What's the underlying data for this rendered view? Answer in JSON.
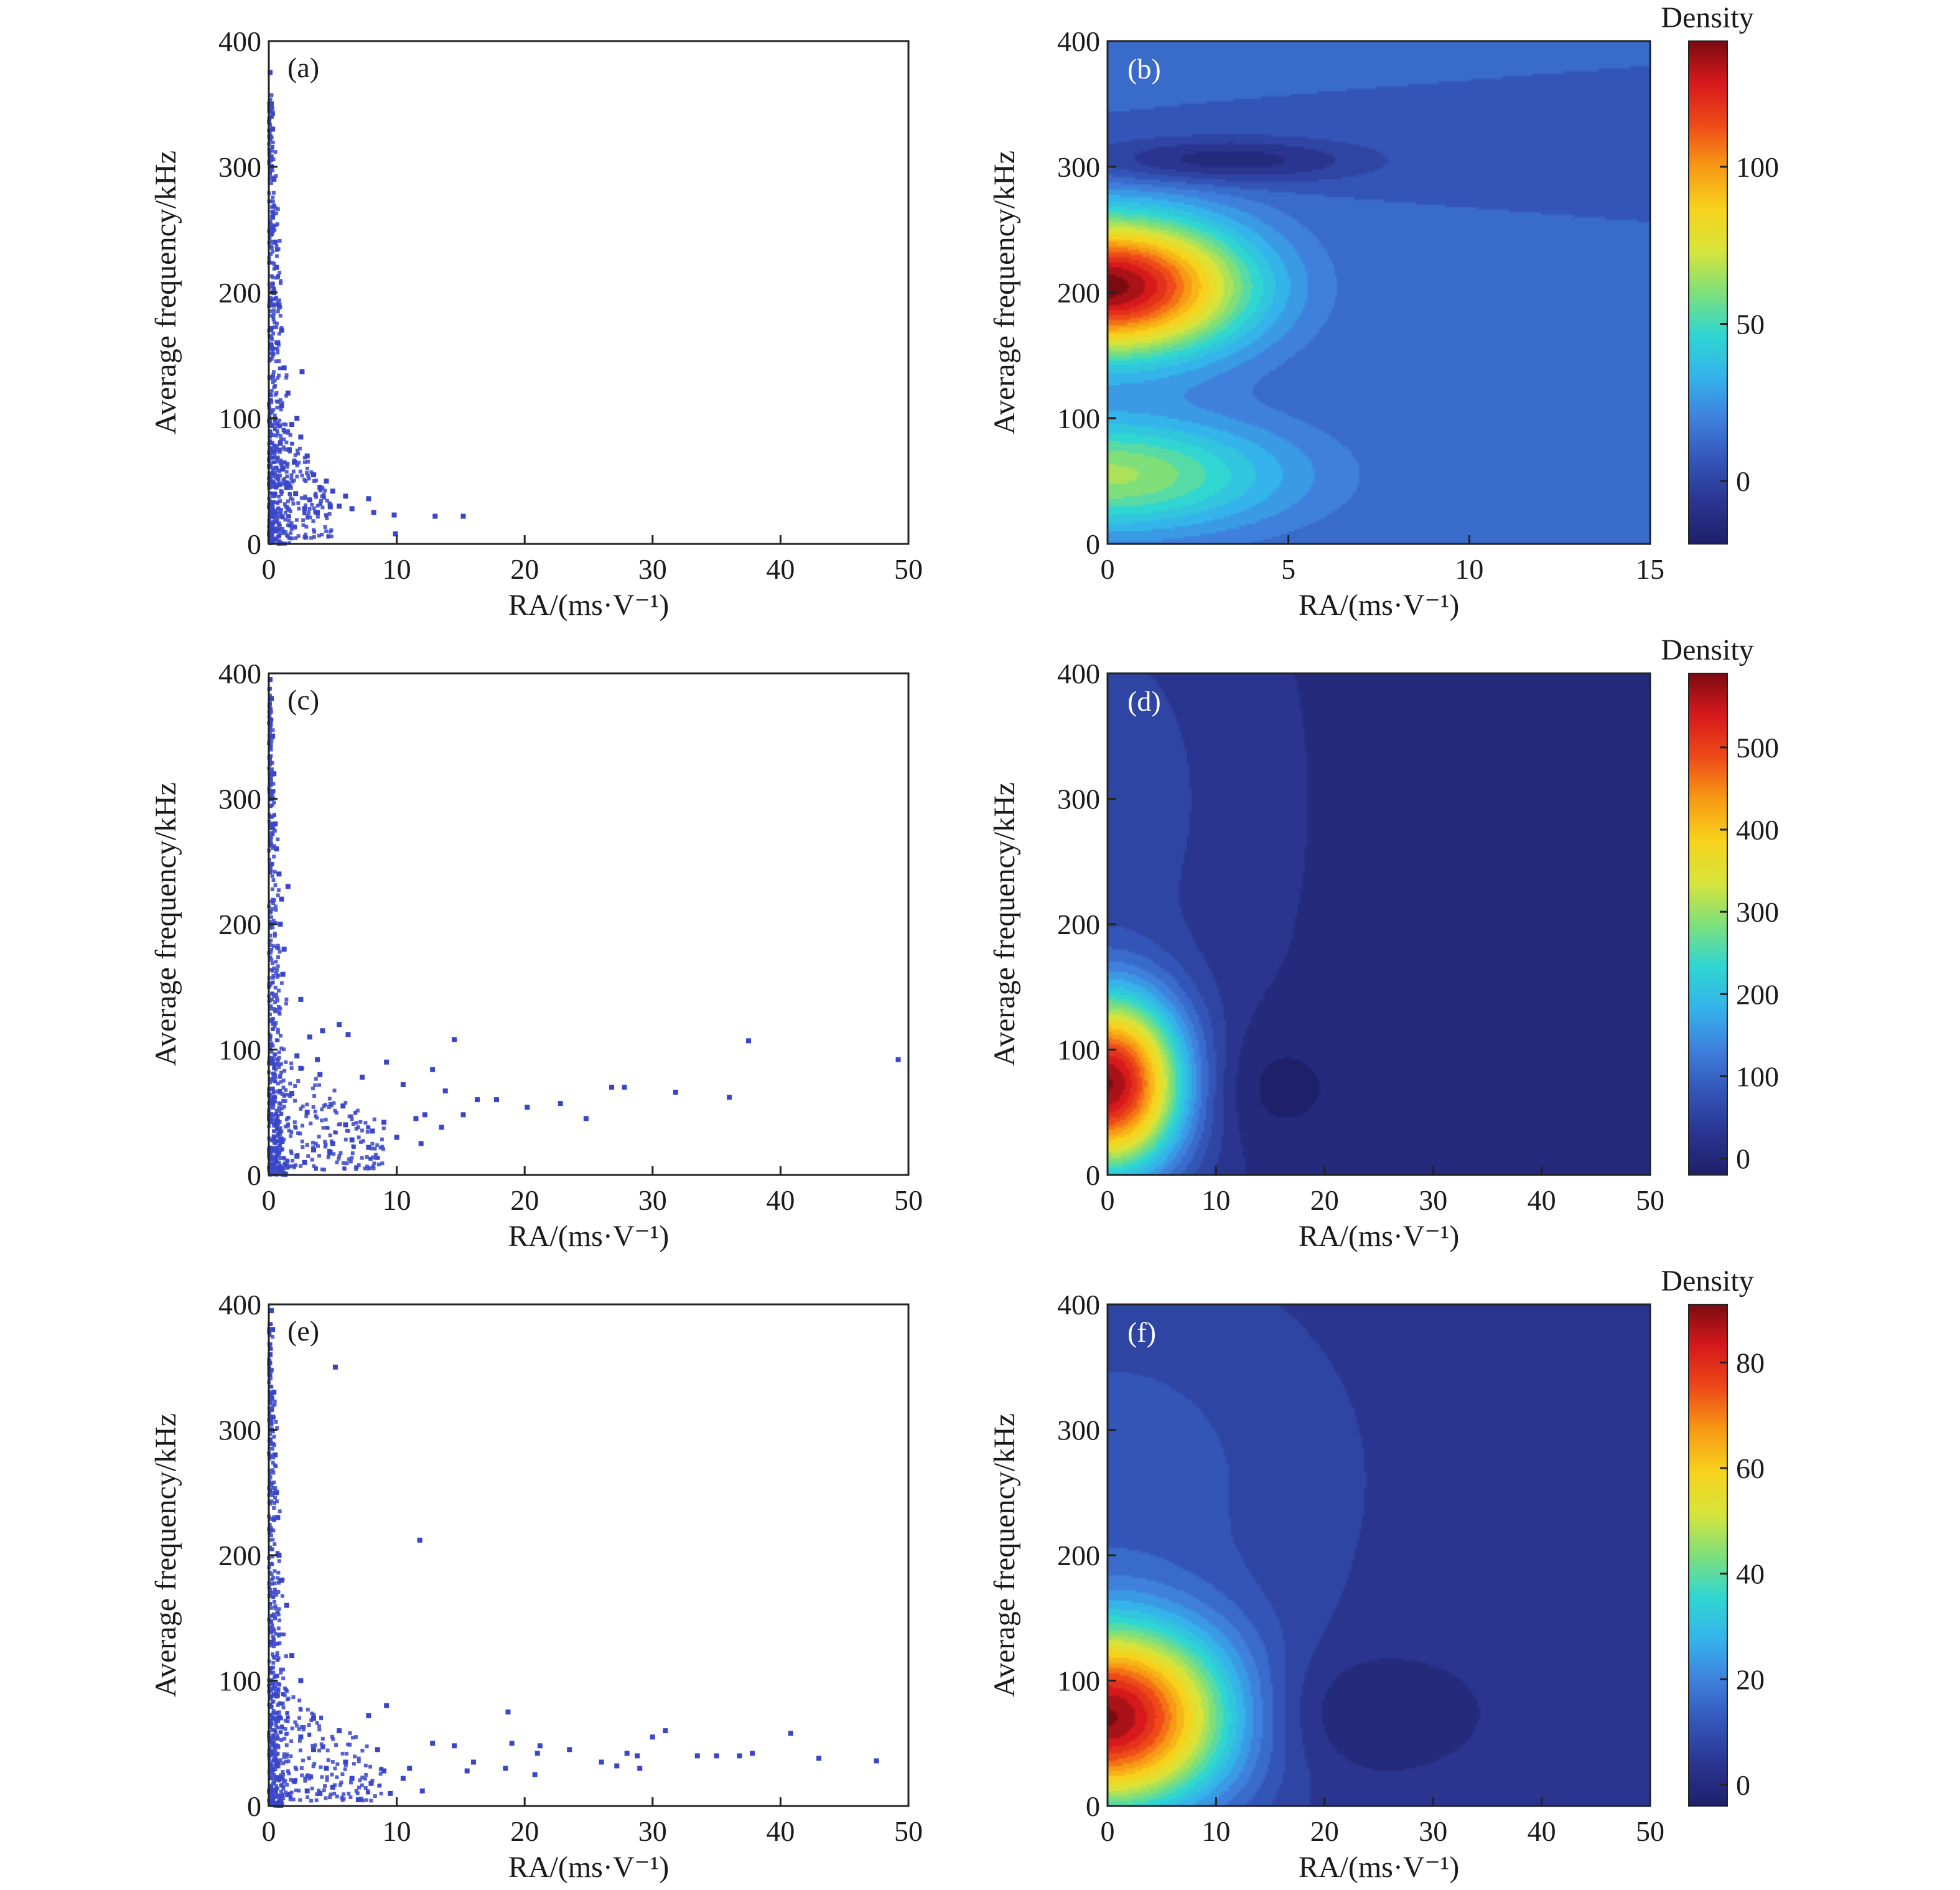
{
  "colors": {
    "scatter_point": "#3a46c8",
    "frame": "#222222",
    "colormap": [
      "#1e2069",
      "#2a3590",
      "#3355b8",
      "#3f80dd",
      "#34b4ea",
      "#2fd6d2",
      "#7fe07a",
      "#d8e43a",
      "#f7d21c",
      "#f79a14",
      "#ee4a18",
      "#d7191c",
      "#7a0b10"
    ]
  },
  "chart_data": [
    {
      "id": "a",
      "type": "scatter",
      "panel_label": "(a)",
      "xlabel": "RA/(ms·V⁻¹)",
      "ylabel": "Average frequency/kHz",
      "xlim": [
        0,
        50
      ],
      "ylim": [
        0,
        400
      ],
      "xticks": [
        "0",
        "10",
        "20",
        "30",
        "40",
        "50"
      ],
      "yticks": [
        "0",
        "100",
        "200",
        "300",
        "400"
      ],
      "points": [
        [
          0.1,
          375
        ],
        [
          0.2,
          350
        ],
        [
          0.3,
          330
        ],
        [
          0.2,
          300
        ],
        [
          0.4,
          290
        ],
        [
          0.3,
          260
        ],
        [
          0.5,
          240
        ],
        [
          0.6,
          220
        ],
        [
          0.4,
          200
        ],
        [
          0.8,
          190
        ],
        [
          1.0,
          170
        ],
        [
          0.7,
          160
        ],
        [
          1.2,
          140
        ],
        [
          2.6,
          137
        ],
        [
          1.5,
          120
        ],
        [
          1.0,
          110
        ],
        [
          2.2,
          100
        ],
        [
          1.8,
          95
        ],
        [
          2.5,
          85
        ],
        [
          3.0,
          70
        ],
        [
          2.0,
          65
        ],
        [
          3.5,
          55
        ],
        [
          4.5,
          50
        ],
        [
          4.0,
          45
        ],
        [
          5.0,
          42
        ],
        [
          6.0,
          38
        ],
        [
          7.8,
          36
        ],
        [
          5.5,
          30
        ],
        [
          8.2,
          25
        ],
        [
          9.8,
          23
        ],
        [
          13.0,
          22
        ],
        [
          15.2,
          22
        ],
        [
          3.2,
          35
        ],
        [
          2.8,
          28
        ],
        [
          1.4,
          45
        ],
        [
          1.1,
          60
        ],
        [
          0.9,
          80
        ],
        [
          1.6,
          75
        ],
        [
          2.1,
          40
        ],
        [
          3.8,
          25
        ],
        [
          4.8,
          30
        ],
        [
          6.5,
          28
        ],
        [
          9.9,
          8
        ]
      ],
      "dense_cluster": {
        "note": "dense points near RA 0-3, frequency 0-400"
      }
    },
    {
      "id": "b",
      "type": "heatmap",
      "panel_label": "(b)",
      "xlabel": "RA/(ms·V⁻¹)",
      "ylabel": "Average frequency/kHz",
      "xlim": [
        0,
        15
      ],
      "ylim": [
        0,
        400
      ],
      "xticks": [
        "0",
        "5",
        "10",
        "15"
      ],
      "yticks": [
        "0",
        "100",
        "200",
        "300",
        "400"
      ],
      "colorbar": {
        "title": "Density",
        "min": -20,
        "max": 140,
        "ticks": [
          "0",
          "50",
          "100"
        ],
        "tick_values": [
          0,
          50,
          100
        ]
      },
      "background": 10,
      "blobs": [
        {
          "x": 0,
          "y": 205,
          "peak": 130,
          "sx": 2.6,
          "sy": 38
        },
        {
          "x": 0,
          "y": 55,
          "peak": 55,
          "sx": 3.4,
          "sy": 32
        },
        {
          "x": 3.2,
          "y": 305,
          "peak": -25,
          "sx": 2.8,
          "sy": 13
        }
      ]
    },
    {
      "id": "c",
      "type": "scatter",
      "panel_label": "(c)",
      "xlabel": "RA/(ms·V⁻¹)",
      "ylabel": "Average frequency/kHz",
      "xlim": [
        0,
        50
      ],
      "ylim": [
        0,
        400
      ],
      "xticks": [
        "0",
        "10",
        "20",
        "30",
        "40",
        "50"
      ],
      "yticks": [
        "0",
        "100",
        "200",
        "300",
        "400"
      ],
      "points": [
        [
          0.1,
          395
        ],
        [
          0.2,
          380
        ],
        [
          0.3,
          350
        ],
        [
          0.4,
          320
        ],
        [
          0.2,
          300
        ],
        [
          0.5,
          280
        ],
        [
          0.6,
          260
        ],
        [
          0.8,
          240
        ],
        [
          1.5,
          230
        ],
        [
          1.0,
          220
        ],
        [
          0.9,
          200
        ],
        [
          1.2,
          180
        ],
        [
          1.1,
          160
        ],
        [
          2.5,
          140
        ],
        [
          3.2,
          110
        ],
        [
          5.5,
          120
        ],
        [
          4.2,
          115
        ],
        [
          6.2,
          112
        ],
        [
          14.5,
          108
        ],
        [
          37.5,
          107
        ],
        [
          49.2,
          92
        ],
        [
          9.2,
          90
        ],
        [
          12.8,
          84
        ],
        [
          2.5,
          85
        ],
        [
          4.0,
          80
        ],
        [
          7.3,
          78
        ],
        [
          10.5,
          72
        ],
        [
          13.8,
          67
        ],
        [
          26.8,
          70
        ],
        [
          27.8,
          70
        ],
        [
          31.8,
          66
        ],
        [
          36.0,
          62
        ],
        [
          16.3,
          60
        ],
        [
          17.8,
          60
        ],
        [
          20.2,
          54
        ],
        [
          22.8,
          57
        ],
        [
          24.8,
          45
        ],
        [
          15.2,
          48
        ],
        [
          11.5,
          45
        ],
        [
          12.2,
          48
        ],
        [
          13.5,
          38
        ],
        [
          9.0,
          42
        ],
        [
          8.1,
          35
        ],
        [
          10.0,
          30
        ],
        [
          11.9,
          25
        ],
        [
          6.5,
          28
        ],
        [
          7.8,
          22
        ],
        [
          5.0,
          25
        ],
        [
          3.5,
          20
        ],
        [
          2.2,
          15
        ],
        [
          2.8,
          10
        ],
        [
          4.8,
          18
        ],
        [
          6.0,
          40
        ],
        [
          5.8,
          55
        ],
        [
          3.0,
          50
        ],
        [
          1.8,
          65
        ],
        [
          2.2,
          95
        ],
        [
          3.8,
          92
        ]
      ]
    },
    {
      "id": "d",
      "type": "heatmap",
      "panel_label": "(d)",
      "xlabel": "RA/(ms·V⁻¹)",
      "ylabel": "Average frequency/kHz",
      "xlim": [
        0,
        50
      ],
      "ylim": [
        0,
        400
      ],
      "xticks": [
        "0",
        "10",
        "20",
        "30",
        "40",
        "50"
      ],
      "yticks": [
        "0",
        "100",
        "200",
        "300",
        "400"
      ],
      "colorbar": {
        "title": "Density",
        "min": -20,
        "max": 590,
        "ticks": [
          "0",
          "100",
          "200",
          "300",
          "400",
          "500"
        ],
        "tick_values": [
          0,
          100,
          200,
          300,
          400,
          500
        ]
      },
      "background": 15,
      "blobs": [
        {
          "x": 0,
          "y": 72,
          "peak": 560,
          "sx": 5.0,
          "sy": 50
        },
        {
          "x": 0,
          "y": 300,
          "peak": 45,
          "sx": 8.0,
          "sy": 120
        },
        {
          "x": 14,
          "y": 70,
          "peak": -35,
          "sx": 6.0,
          "sy": 35
        }
      ]
    },
    {
      "id": "e",
      "type": "scatter",
      "panel_label": "(e)",
      "xlabel": "RA/(ms·V⁻¹)",
      "ylabel": "Average frequency/kHz",
      "xlim": [
        0,
        50
      ],
      "ylim": [
        0,
        400
      ],
      "xticks": [
        "0",
        "10",
        "20",
        "30",
        "40",
        "50"
      ],
      "yticks": [
        "0",
        "100",
        "200",
        "300",
        "400"
      ],
      "points": [
        [
          0.2,
          395
        ],
        [
          0.3,
          380
        ],
        [
          0.1,
          360
        ],
        [
          5.2,
          350
        ],
        [
          0.4,
          330
        ],
        [
          0.3,
          310
        ],
        [
          0.2,
          300
        ],
        [
          0.5,
          280
        ],
        [
          0.6,
          250
        ],
        [
          0.7,
          230
        ],
        [
          11.8,
          212
        ],
        [
          0.8,
          200
        ],
        [
          1.0,
          180
        ],
        [
          1.4,
          160
        ],
        [
          1.8,
          120
        ],
        [
          2.5,
          100
        ],
        [
          9.2,
          80
        ],
        [
          18.7,
          75
        ],
        [
          7.8,
          72
        ],
        [
          3.5,
          70
        ],
        [
          31.0,
          60
        ],
        [
          40.8,
          58
        ],
        [
          30.0,
          55
        ],
        [
          21.2,
          48
        ],
        [
          19.0,
          50
        ],
        [
          12.8,
          50
        ],
        [
          14.5,
          48
        ],
        [
          23.5,
          45
        ],
        [
          28.0,
          42
        ],
        [
          28.8,
          40
        ],
        [
          33.5,
          40
        ],
        [
          35.0,
          40
        ],
        [
          36.8,
          40
        ],
        [
          37.8,
          42
        ],
        [
          43.0,
          38
        ],
        [
          47.5,
          36
        ],
        [
          21.0,
          42
        ],
        [
          26.0,
          35
        ],
        [
          27.2,
          32
        ],
        [
          29.0,
          30
        ],
        [
          18.5,
          30
        ],
        [
          16.0,
          35
        ],
        [
          15.5,
          28
        ],
        [
          20.8,
          25
        ],
        [
          11.0,
          30
        ],
        [
          10.5,
          22
        ],
        [
          9.0,
          28
        ],
        [
          8.0,
          18
        ],
        [
          6.5,
          22
        ],
        [
          5.0,
          15
        ],
        [
          4.0,
          10
        ],
        [
          3.0,
          12
        ],
        [
          7.0,
          5
        ],
        [
          9.5,
          10
        ],
        [
          12.0,
          12
        ],
        [
          2.0,
          20
        ],
        [
          4.5,
          30
        ],
        [
          6.0,
          35
        ],
        [
          3.5,
          45
        ],
        [
          2.5,
          55
        ],
        [
          5.5,
          60
        ],
        [
          8.5,
          45
        ]
      ]
    },
    {
      "id": "f",
      "type": "heatmap",
      "panel_label": "(f)",
      "xlabel": "RA/(ms·V⁻¹)",
      "ylabel": "Average frequency/kHz",
      "xlim": [
        0,
        50
      ],
      "ylim": [
        0,
        400
      ],
      "xticks": [
        "0",
        "10",
        "20",
        "30",
        "40",
        "50"
      ],
      "yticks": [
        "0",
        "100",
        "200",
        "300",
        "400"
      ],
      "colorbar": {
        "title": "Density",
        "min": -4,
        "max": 91,
        "ticks": [
          "0",
          "20",
          "40",
          "60",
          "80"
        ],
        "tick_values": [
          0,
          20,
          40,
          60,
          80
        ]
      },
      "background": 4,
      "blobs": [
        {
          "x": 0,
          "y": 70,
          "peak": 84,
          "sx": 8.0,
          "sy": 52
        },
        {
          "x": 0,
          "y": 260,
          "peak": 8,
          "sx": 14.0,
          "sy": 110
        },
        {
          "x": 22,
          "y": 75,
          "peak": -7,
          "sx": 8.0,
          "sy": 35
        }
      ]
    }
  ]
}
